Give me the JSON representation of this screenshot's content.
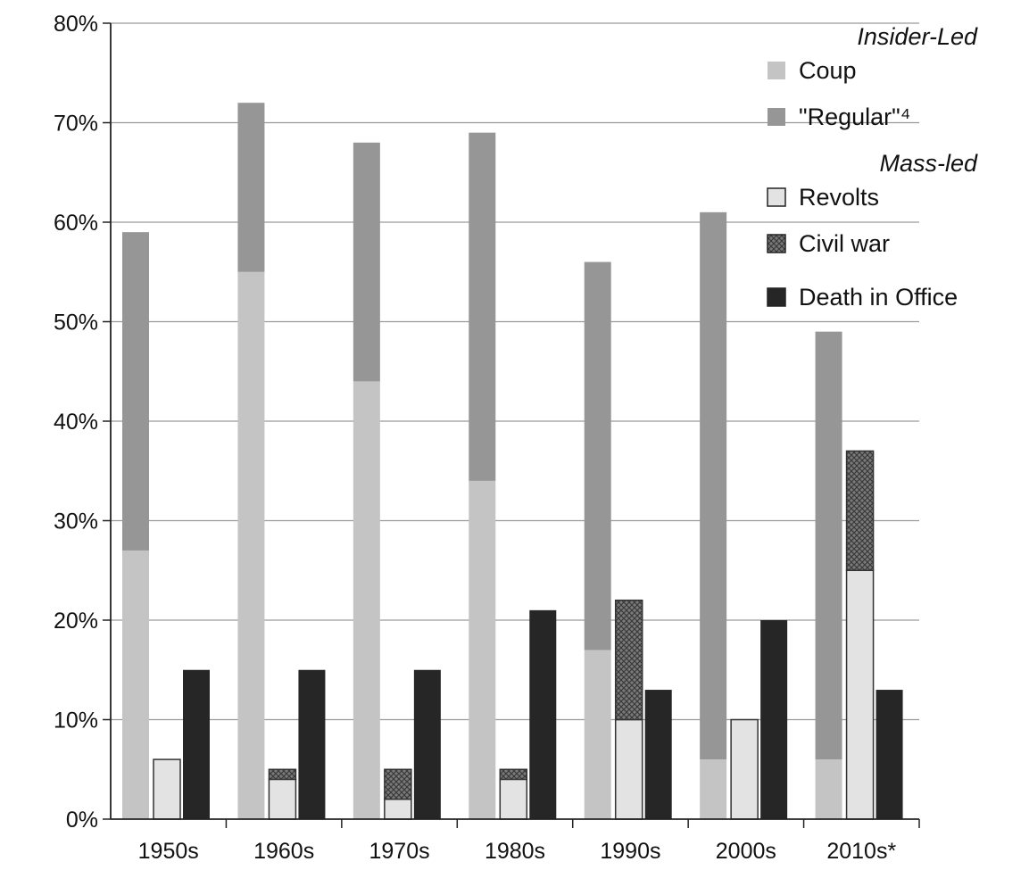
{
  "chart_data": {
    "type": "bar",
    "stacked_groups": true,
    "categories": [
      "1950s",
      "1960s",
      "1970s",
      "1980s",
      "1990s",
      "2000s",
      "2010s*"
    ],
    "ylim": [
      0,
      80
    ],
    "y_ticks": [
      "0%",
      "10%",
      "20%",
      "30%",
      "40%",
      "50%",
      "60%",
      "70%",
      "80%"
    ],
    "grid": true,
    "legend_placement": "top-right",
    "legend_groups": [
      {
        "heading": "Insider-Led",
        "items": [
          "coup",
          "regular"
        ]
      },
      {
        "heading": "Mass-led",
        "items": [
          "revolts",
          "civil_war"
        ]
      },
      {
        "heading": "",
        "items": [
          "death"
        ]
      }
    ],
    "series": [
      {
        "id": "coup",
        "name": "Coup",
        "stack": "insider",
        "color": "#c4c4c4",
        "values": [
          27,
          55,
          44,
          34,
          17,
          6,
          6
        ]
      },
      {
        "id": "regular",
        "name": "\"Regular\"⁴",
        "stack": "insider",
        "color": "#969696",
        "values": [
          32,
          17,
          24,
          35,
          39,
          55,
          43
        ]
      },
      {
        "id": "revolts",
        "name": "Revolts",
        "stack": "mass",
        "color": "#e3e3e3",
        "values": [
          6,
          4,
          2,
          4,
          10,
          10,
          25
        ]
      },
      {
        "id": "civil_war",
        "name": "Civil war",
        "stack": "mass",
        "color": "#666666",
        "values": [
          0,
          1,
          3,
          1,
          12,
          0,
          12
        ]
      },
      {
        "id": "death",
        "name": "Death in Office",
        "stack": "death",
        "color": "#262626",
        "values": [
          15,
          15,
          15,
          21,
          13,
          20,
          13
        ]
      }
    ]
  }
}
